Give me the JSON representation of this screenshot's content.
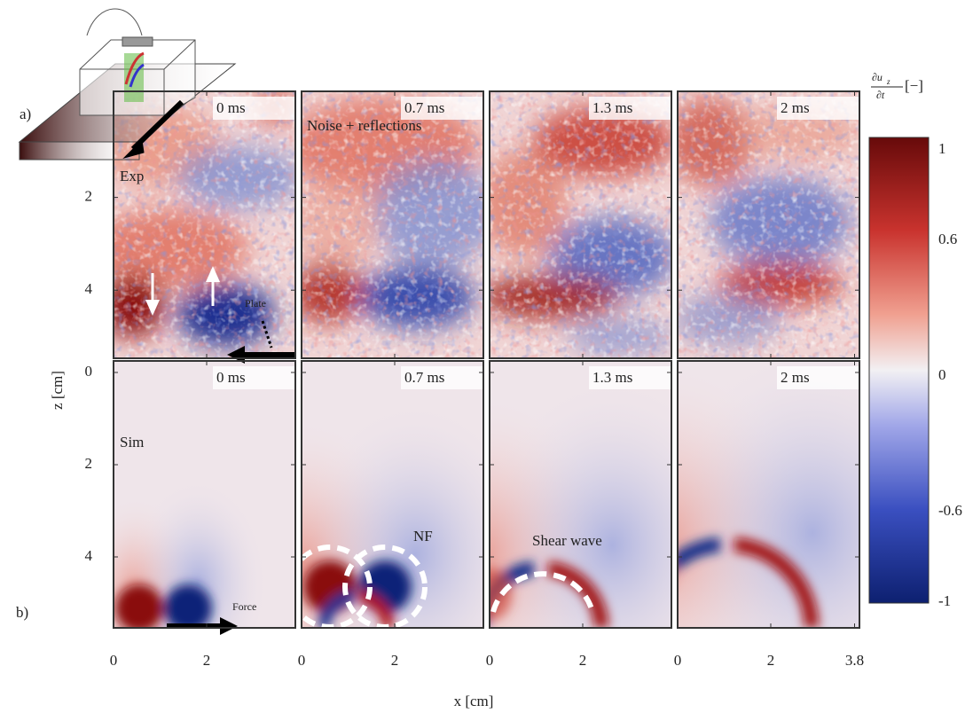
{
  "panel_labels": {
    "a": "a)",
    "b": "b)"
  },
  "rows": [
    {
      "label": "Exp",
      "times": [
        "0 ms",
        "0.7 ms",
        "1.3 ms",
        "2 ms"
      ],
      "z_ticks": [
        2,
        4
      ]
    },
    {
      "label": "Sim",
      "times": [
        "0 ms",
        "0.7 ms",
        "1.3 ms",
        "2 ms"
      ],
      "z_ticks": [
        0,
        2,
        4
      ]
    }
  ],
  "annotations": {
    "noise": "Noise + reflections",
    "plate": "Plate",
    "nf": "NF",
    "shear": "Shear wave",
    "force": "Force"
  },
  "x_ticks": [
    [
      0,
      2
    ],
    [
      0,
      2
    ],
    [
      0,
      2
    ],
    [
      0,
      2,
      3.8
    ]
  ],
  "z_label": "z [cm]",
  "x_label": "x [cm]",
  "colorbar": {
    "num": "∂u",
    "sub": "z",
    "den": "∂t",
    "unit": "[−]",
    "ticks": [
      1,
      0.6,
      0,
      -0.6,
      -1
    ]
  }
}
